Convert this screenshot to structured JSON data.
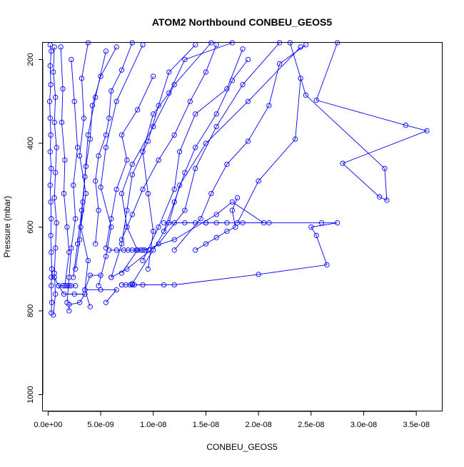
{
  "chart_data": {
    "type": "line",
    "title": "ATOM2 Northbound CONBEU_GEOS5",
    "xlabel": "CONBEU_GEOS5",
    "ylabel": "Pressure (mbar)",
    "xlim": [
      -5e-10,
      3.75e-08
    ],
    "ylim": [
      1040,
      160
    ],
    "y_reversed": true,
    "grid": false,
    "legend": "none",
    "series_color": "#0000ff",
    "marker": "open-circle",
    "x_ticks": [
      0,
      5e-09,
      1e-08,
      1.5e-08,
      2e-08,
      2.5e-08,
      3e-08,
      3.5e-08
    ],
    "x_tick_labels": [
      "0.0e+00",
      "5.0e-09",
      "1.0e-08",
      "1.5e-08",
      "2.0e-08",
      "2.5e-08",
      "3.0e-08",
      "3.5e-08"
    ],
    "y_ticks": [
      200,
      400,
      600,
      800,
      1000
    ],
    "y_tick_labels": [
      "200",
      "400",
      "600",
      "800",
      "1000"
    ],
    "series": [
      {
        "values": [
          [
            2e-10,
            165
          ],
          [
            3e-10,
            180
          ],
          [
            2e-10,
            215
          ],
          [
            2.5e-10,
            260
          ],
          [
            1.5e-10,
            300
          ],
          [
            2e-10,
            340
          ],
          [
            2.5e-10,
            380
          ],
          [
            2e-10,
            420
          ],
          [
            3e-10,
            460
          ],
          [
            2e-10,
            500
          ],
          [
            2.5e-10,
            540
          ],
          [
            3e-10,
            580
          ],
          [
            2.5e-10,
            620
          ],
          [
            3e-10,
            660
          ],
          [
            3.5e-10,
            700
          ],
          [
            3e-10,
            740
          ],
          [
            3.5e-10,
            780
          ],
          [
            3e-10,
            805
          ]
        ]
      },
      {
        "values": [
          [
            6e-10,
            170
          ],
          [
            5e-10,
            230
          ],
          [
            7e-10,
            290
          ],
          [
            6e-10,
            350
          ],
          [
            8e-10,
            410
          ],
          [
            7e-10,
            470
          ],
          [
            6e-10,
            530
          ],
          [
            8e-10,
            590
          ],
          [
            7e-10,
            650
          ],
          [
            6e-10,
            710
          ],
          [
            7e-10,
            760
          ],
          [
            5e-10,
            810
          ]
        ]
      },
      {
        "values": [
          [
            3.8e-09,
            160
          ],
          [
            3.2e-09,
            245
          ],
          [
            3.4e-09,
            340
          ],
          [
            3e-09,
            430
          ],
          [
            3.6e-09,
            520
          ],
          [
            3.1e-09,
            600
          ],
          [
            3.8e-09,
            680
          ],
          [
            3.5e-09,
            750
          ],
          [
            4e-09,
            790
          ]
        ]
      },
      {
        "values": [
          [
            9e-09,
            165
          ],
          [
            6.5e-09,
            300
          ],
          [
            5.5e-09,
            410
          ],
          [
            5e-09,
            505
          ],
          [
            6e-09,
            600
          ],
          [
            5.5e-09,
            670
          ],
          [
            4.8e-09,
            740
          ]
        ]
      },
      {
        "values": [
          [
            1.55e-08,
            160
          ],
          [
            1.2e-08,
            260
          ],
          [
            1e-08,
            360
          ],
          [
            8e-09,
            450
          ],
          [
            7e-09,
            520
          ],
          [
            7.5e-09,
            600
          ],
          [
            8.5e-09,
            655
          ],
          [
            7e-09,
            710
          ]
        ]
      },
      {
        "values": [
          [
            2.4e-08,
            170
          ],
          [
            1.9e-08,
            300
          ],
          [
            1.5e-08,
            400
          ],
          [
            1.25e-08,
            500
          ],
          [
            1.15e-08,
            590
          ],
          [
            1e-08,
            655
          ],
          [
            8e-09,
            735
          ]
        ]
      },
      {
        "values": [
          [
            2.75e-08,
            160
          ],
          [
            2.55e-08,
            297
          ],
          [
            3.4e-08,
            357
          ],
          [
            3.6e-08,
            370
          ],
          [
            2.8e-08,
            448
          ],
          [
            3.15e-08,
            528
          ],
          [
            3.22e-08,
            536
          ],
          [
            3.2e-08,
            460
          ],
          [
            2.45e-08,
            285
          ],
          [
            2.3e-08,
            160
          ]
        ]
      },
      {
        "values": [
          [
            2.4e-08,
            245
          ],
          [
            2.35e-08,
            390
          ],
          [
            2e-08,
            490
          ],
          [
            1.8e-08,
            590
          ],
          [
            2.1e-08,
            590
          ],
          [
            2.6e-08,
            590
          ],
          [
            2.75e-08,
            590
          ],
          [
            2.5e-08,
            600
          ],
          [
            2.55e-08,
            620
          ],
          [
            2.65e-08,
            690
          ],
          [
            2e-08,
            713
          ],
          [
            1.2e-08,
            738
          ],
          [
            8e-09,
            738
          ],
          [
            7e-09,
            738
          ]
        ]
      },
      {
        "values": [
          [
            1.1e-08,
            590
          ],
          [
            1.5e-08,
            590
          ],
          [
            1.85e-08,
            590
          ],
          [
            2.05e-08,
            590
          ],
          [
            1.75e-08,
            540
          ],
          [
            1.6e-08,
            570
          ],
          [
            1.2e-08,
            630
          ],
          [
            9e-09,
            655
          ],
          [
            6.5e-09,
            655
          ],
          [
            5.8e-09,
            655
          ]
        ]
      },
      {
        "values": [
          [
            2e-09,
            740
          ],
          [
            1e-09,
            740
          ],
          [
            1.5e-09,
            760
          ],
          [
            2.5e-09,
            760
          ],
          [
            3.5e-09,
            760
          ],
          [
            3e-09,
            780
          ],
          [
            2e-09,
            785
          ],
          [
            2e-09,
            800
          ]
        ]
      },
      {
        "values": [
          [
            5e-09,
            715
          ],
          [
            4e-09,
            715
          ],
          [
            3.5e-09,
            750
          ],
          [
            5e-09,
            750
          ],
          [
            6.5e-09,
            750
          ],
          [
            5.5e-09,
            780
          ]
        ]
      },
      {
        "values": [
          [
            1.75e-08,
            160
          ],
          [
            1.3e-08,
            200
          ],
          [
            1.15e-08,
            280
          ],
          [
            1e-08,
            330
          ],
          [
            9e-09,
            420
          ],
          [
            9.5e-09,
            520
          ],
          [
            1e-08,
            610
          ],
          [
            9.5e-09,
            700
          ]
        ]
      },
      {
        "values": [
          [
            2.2e-08,
            160
          ],
          [
            1.85e-08,
            260
          ],
          [
            1.6e-08,
            360
          ],
          [
            1.4e-08,
            460
          ],
          [
            1.3e-08,
            560
          ],
          [
            1.05e-08,
            640
          ],
          [
            7.5e-09,
            700
          ],
          [
            6e-09,
            720
          ]
        ]
      },
      {
        "values": [
          [
            1.85e-08,
            175
          ],
          [
            1.7e-08,
            270
          ],
          [
            1.4e-08,
            330
          ],
          [
            1.25e-08,
            420
          ],
          [
            1.2e-08,
            510
          ],
          [
            1.05e-08,
            600
          ],
          [
            9e-09,
            680
          ]
        ]
      },
      {
        "values": [
          [
            2.45e-08,
            165
          ],
          [
            2.2e-08,
            210
          ],
          [
            2.1e-08,
            310
          ],
          [
            1.9e-08,
            395
          ],
          [
            1.7e-08,
            450
          ],
          [
            1.55e-08,
            520
          ],
          [
            1.45e-08,
            580
          ],
          [
            1.2e-08,
            655
          ]
        ]
      },
      {
        "values": [
          [
            1.4e-08,
            165
          ],
          [
            1.15e-08,
            230
          ],
          [
            1.05e-08,
            310
          ],
          [
            9.5e-09,
            395
          ],
          [
            8e-09,
            475
          ],
          [
            7.5e-09,
            560
          ],
          [
            7e-09,
            640
          ],
          [
            6e-09,
            720
          ]
        ]
      },
      {
        "values": [
          [
            8e-09,
            160
          ],
          [
            7e-09,
            225
          ],
          [
            6e-09,
            275
          ],
          [
            5.8e-09,
            340
          ],
          [
            5.5e-09,
            380
          ],
          [
            4.8e-09,
            430
          ],
          [
            4.5e-09,
            490
          ],
          [
            4.8e-09,
            560
          ],
          [
            4.5e-09,
            640
          ]
        ]
      },
      {
        "values": [
          [
            6.5e-09,
            170
          ],
          [
            5e-09,
            240
          ],
          [
            4.2e-09,
            310
          ],
          [
            4e-09,
            390
          ],
          [
            3.6e-09,
            455
          ],
          [
            3.3e-09,
            540
          ],
          [
            3e-09,
            630
          ],
          [
            2.6e-09,
            700
          ]
        ]
      },
      {
        "values": [
          [
            5.5e-09,
            180
          ],
          [
            4.5e-09,
            290
          ],
          [
            3.8e-09,
            380
          ],
          [
            3.5e-09,
            480
          ],
          [
            3.2e-09,
            560
          ],
          [
            2.8e-09,
            640
          ],
          [
            2.4e-09,
            720
          ]
        ]
      },
      {
        "values": [
          [
            1.2e-09,
            170
          ],
          [
            1.4e-09,
            270
          ],
          [
            1.3e-09,
            350
          ],
          [
            1.6e-09,
            440
          ],
          [
            1.5e-09,
            520
          ],
          [
            1.8e-09,
            600
          ],
          [
            2e-09,
            660
          ],
          [
            1.6e-09,
            740
          ]
        ]
      },
      {
        "values": [
          [
            2.2e-09,
            200
          ],
          [
            2.5e-09,
            300
          ],
          [
            2.8e-09,
            410
          ],
          [
            2.4e-09,
            500
          ],
          [
            2.6e-09,
            580
          ],
          [
            2.2e-09,
            650
          ],
          [
            2e-09,
            720
          ],
          [
            1.8e-09,
            780
          ]
        ]
      },
      {
        "values": [
          [
            1e-08,
            240
          ],
          [
            8.5e-09,
            320
          ],
          [
            7e-09,
            380
          ],
          [
            7.5e-09,
            440
          ],
          [
            6.5e-09,
            510
          ],
          [
            6e-09,
            580
          ],
          [
            5.5e-09,
            650
          ]
        ]
      },
      {
        "values": [
          [
            1.6e-08,
            165
          ],
          [
            1.5e-08,
            230
          ],
          [
            1.35e-08,
            300
          ],
          [
            1.2e-08,
            380
          ],
          [
            1.05e-08,
            440
          ],
          [
            9e-09,
            510
          ],
          [
            8e-09,
            570
          ],
          [
            7e-09,
            630
          ]
        ]
      },
      {
        "values": [
          [
            1.9e-08,
            200
          ],
          [
            1.75e-08,
            250
          ],
          [
            1.6e-08,
            330
          ],
          [
            1.4e-08,
            410
          ],
          [
            1.3e-08,
            470
          ],
          [
            1.2e-08,
            540
          ],
          [
            1.1e-08,
            610
          ]
        ]
      },
      {
        "values": [
          [
            1.8e-08,
            530
          ],
          [
            1.75e-08,
            560
          ],
          [
            1.78e-08,
            600
          ],
          [
            1.7e-08,
            610
          ],
          [
            1.6e-08,
            625
          ],
          [
            1.5e-08,
            640
          ],
          [
            1.4e-08,
            655
          ]
        ]
      },
      {
        "values": [
          [
            7.2e-09,
            655
          ],
          [
            7.6e-09,
            655
          ],
          [
            8e-09,
            655
          ],
          [
            8.4e-09,
            655
          ],
          [
            8.8e-09,
            655
          ],
          [
            9.2e-09,
            655
          ],
          [
            9.6e-09,
            655
          ]
        ]
      },
      {
        "values": [
          [
            7e-09,
            738
          ],
          [
            7.4e-09,
            738
          ],
          [
            7.8e-09,
            738
          ],
          [
            8.2e-09,
            738
          ],
          [
            9e-09,
            738
          ],
          [
            1.1e-08,
            738
          ]
        ]
      },
      {
        "values": [
          [
            1.2e-08,
            590
          ],
          [
            1.3e-08,
            590
          ],
          [
            1.4e-08,
            590
          ],
          [
            1.5e-08,
            590
          ],
          [
            1.6e-08,
            590
          ],
          [
            1.7e-08,
            590
          ]
        ]
      },
      {
        "values": [
          [
            3e-10,
            720
          ],
          [
            6e-10,
            720
          ],
          [
            1e-09,
            740
          ],
          [
            1.4e-09,
            740
          ],
          [
            1.8e-09,
            740
          ],
          [
            2.2e-09,
            740
          ],
          [
            2.6e-09,
            740
          ]
        ]
      }
    ]
  }
}
